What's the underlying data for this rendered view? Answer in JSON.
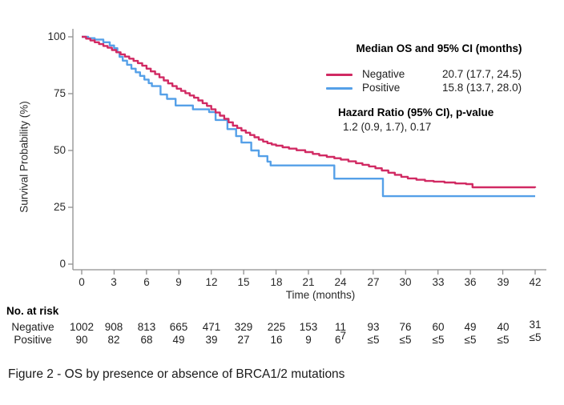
{
  "caption": "Figure 2 - OS by presence or absence of BRCA1/2 mutations",
  "legend": {
    "title": "Median OS and 95% CI (months)",
    "items": [
      {
        "label": "Negative",
        "value": "20.7 (17.7, 24.5)",
        "color": "#d12a63"
      },
      {
        "label": "Positive",
        "value": "15.8 (13.7, 28.0)",
        "color": "#55a0e8"
      }
    ],
    "hr_heading": "Hazard Ratio (95% CI), p-value",
    "hr_value": "1.2 (0.9, 1.7), 0.17"
  },
  "risk_table": {
    "heading": "No. at risk",
    "superscript_7": "7",
    "rows": [
      {
        "label": "Negative",
        "values": [
          "1002",
          "908",
          "813",
          "665",
          "471",
          "329",
          "225",
          "153",
          "11",
          "93",
          "76",
          "60",
          "49",
          "40",
          "31"
        ]
      },
      {
        "label": "Positive",
        "values": [
          "90",
          "82",
          "68",
          "49",
          "39",
          "27",
          "16",
          "9",
          "6",
          "≤5",
          "≤5",
          "≤5",
          "≤5",
          "≤5",
          "≤5"
        ]
      }
    ]
  },
  "chart_data": {
    "type": "line",
    "subtype": "kaplan-meier-step",
    "title": "",
    "xlabel": "Time (months)",
    "ylabel": "Survival Probability (%)",
    "xlim": [
      0,
      42
    ],
    "ylim": [
      0,
      100
    ],
    "grid": false,
    "legend_position": "top-right",
    "x_ticks": [
      0,
      3,
      6,
      9,
      12,
      15,
      18,
      21,
      24,
      27,
      30,
      33,
      36,
      39,
      42
    ],
    "y_ticks": [
      0,
      25,
      50,
      75,
      100
    ],
    "axis_color": "#8f8f8f",
    "series": [
      {
        "name": "Negative",
        "color": "#d12a63",
        "points": [
          [
            0,
            100
          ],
          [
            0.4,
            99.2
          ],
          [
            0.8,
            98.4
          ],
          [
            1.2,
            97.6
          ],
          [
            1.6,
            96.8
          ],
          [
            2,
            96
          ],
          [
            2.4,
            95.2
          ],
          [
            2.8,
            94.2
          ],
          [
            3.2,
            93.2
          ],
          [
            3.6,
            92.3
          ],
          [
            4,
            91.3
          ],
          [
            4.4,
            90.4
          ],
          [
            4.8,
            89.4
          ],
          [
            5.2,
            88.4
          ],
          [
            5.6,
            87.3
          ],
          [
            6,
            86
          ],
          [
            6.4,
            84.8
          ],
          [
            6.8,
            83.6
          ],
          [
            7.2,
            82.2
          ],
          [
            7.6,
            80.8
          ],
          [
            8,
            79.5
          ],
          [
            8.4,
            78.3
          ],
          [
            8.8,
            77.2
          ],
          [
            9.2,
            76.2
          ],
          [
            9.6,
            75.2
          ],
          [
            10,
            74.2
          ],
          [
            10.4,
            73.2
          ],
          [
            10.8,
            72
          ],
          [
            11.2,
            70.8
          ],
          [
            11.6,
            69.6
          ],
          [
            12,
            68.1
          ],
          [
            12.4,
            66.7
          ],
          [
            12.8,
            65.3
          ],
          [
            13.2,
            63.9
          ],
          [
            13.6,
            62.4
          ],
          [
            14,
            60.9
          ],
          [
            14.4,
            59.9
          ],
          [
            14.8,
            58.8
          ],
          [
            15.2,
            57.8
          ],
          [
            15.6,
            56.8
          ],
          [
            16,
            55.8
          ],
          [
            16.4,
            54.8
          ],
          [
            16.8,
            53.9
          ],
          [
            17.2,
            53.2
          ],
          [
            17.6,
            52.6
          ],
          [
            18,
            52.1
          ],
          [
            18.6,
            51.4
          ],
          [
            19.2,
            50.8
          ],
          [
            19.9,
            50.1
          ],
          [
            20.7,
            49.3
          ],
          [
            21.4,
            48.5
          ],
          [
            22,
            47.8
          ],
          [
            22.7,
            47.2
          ],
          [
            23.4,
            46.6
          ],
          [
            24,
            46
          ],
          [
            24.7,
            45.2
          ],
          [
            25.4,
            44.4
          ],
          [
            26,
            43.7
          ],
          [
            26.6,
            43
          ],
          [
            27.2,
            42.2
          ],
          [
            27.8,
            41.2
          ],
          [
            28.4,
            40.2
          ],
          [
            29,
            39.3
          ],
          [
            29.6,
            38.4
          ],
          [
            30.2,
            37.7
          ],
          [
            31,
            37.1
          ],
          [
            31.8,
            36.6
          ],
          [
            32.6,
            36.3
          ],
          [
            33.6,
            35.9
          ],
          [
            34.6,
            35.5
          ],
          [
            35.6,
            35.2
          ],
          [
            36.2,
            33.8
          ],
          [
            42,
            33.6
          ]
        ]
      },
      {
        "name": "Positive",
        "color": "#55a0e8",
        "points": [
          [
            0,
            100
          ],
          [
            0.6,
            99.4
          ],
          [
            1.2,
            98.8
          ],
          [
            2,
            97.6
          ],
          [
            2.6,
            96.2
          ],
          [
            3,
            95
          ],
          [
            3.3,
            93.2
          ],
          [
            3.5,
            91.2
          ],
          [
            3.8,
            89.5
          ],
          [
            4.2,
            87.7
          ],
          [
            4.6,
            86
          ],
          [
            5,
            84.4
          ],
          [
            5.4,
            82.8
          ],
          [
            5.8,
            81.2
          ],
          [
            6.2,
            79.6
          ],
          [
            6.5,
            78.3
          ],
          [
            7.3,
            74.6
          ],
          [
            7.9,
            72.7
          ],
          [
            8.7,
            69.8
          ],
          [
            10.3,
            68.1
          ],
          [
            11.8,
            66.9
          ],
          [
            12.4,
            63.4
          ],
          [
            13.5,
            59.4
          ],
          [
            14.3,
            56.3
          ],
          [
            14.8,
            53.5
          ],
          [
            15.7,
            50
          ],
          [
            16.4,
            47.5
          ],
          [
            17.2,
            45.1
          ],
          [
            17.5,
            43.4
          ],
          [
            23.4,
            37.6
          ],
          [
            27.9,
            29.9
          ],
          [
            42,
            29.9
          ]
        ]
      }
    ]
  }
}
